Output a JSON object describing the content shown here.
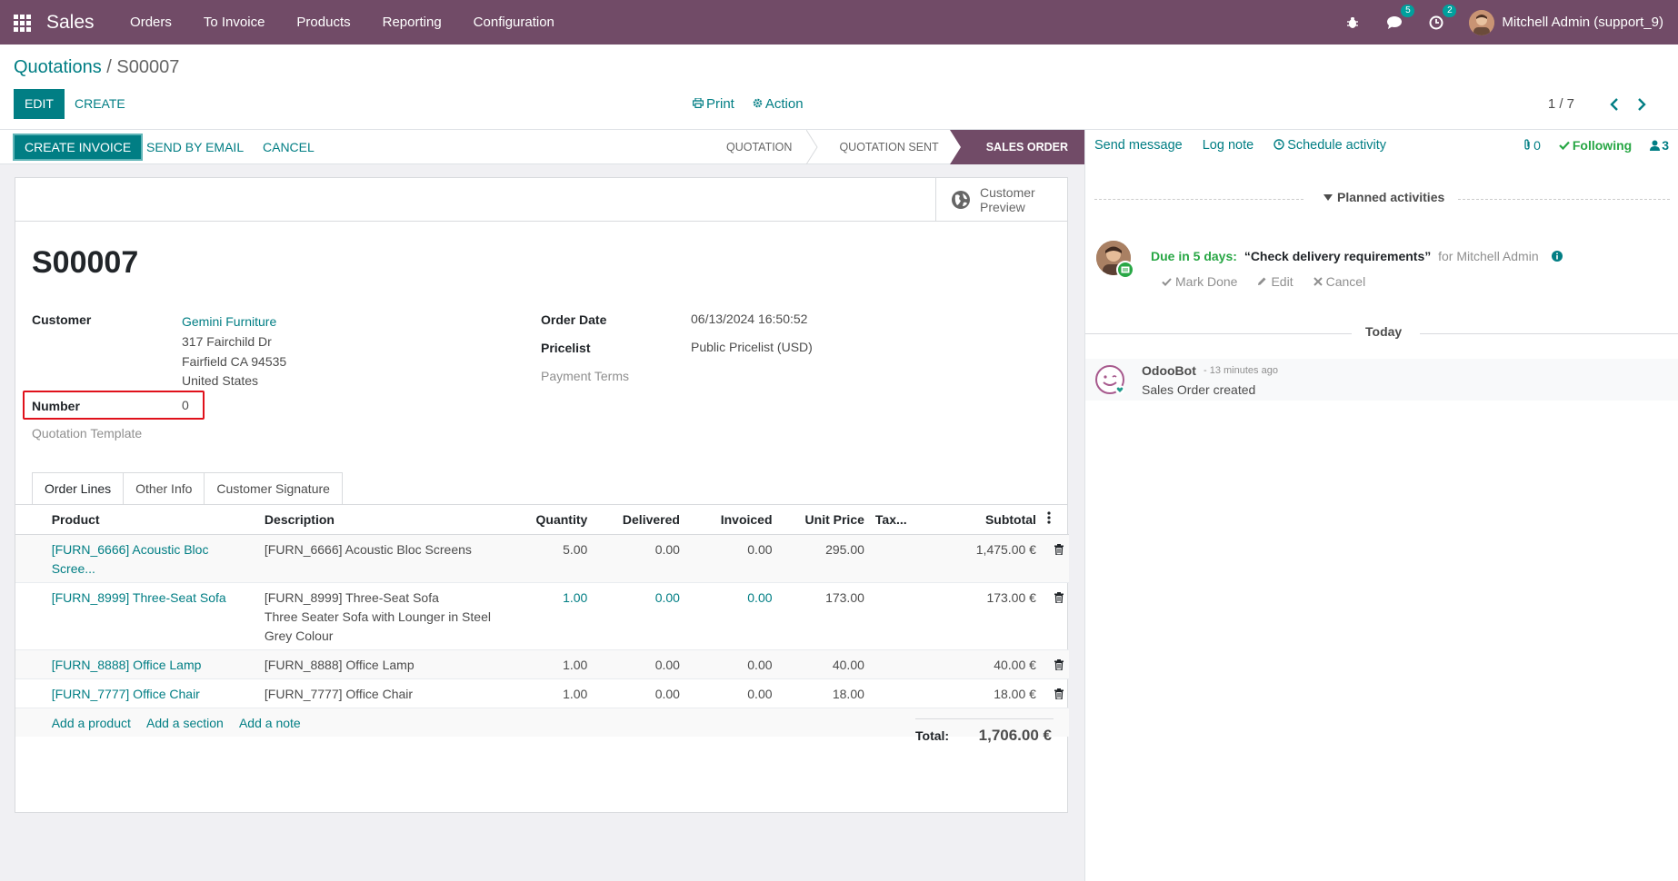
{
  "nav": {
    "app": "Sales",
    "menu": [
      "Orders",
      "To Invoice",
      "Products",
      "Reporting",
      "Configuration"
    ],
    "messages_count": "5",
    "activities_count": "2",
    "user": "Mitchell Admin (support_9)"
  },
  "breadcrumb": {
    "parent": "Quotations",
    "separator": "/",
    "current": "S00007"
  },
  "toolbar": {
    "edit": "EDIT",
    "create": "CREATE",
    "print": "Print",
    "action": "Action"
  },
  "pager": {
    "value": "1 / 7"
  },
  "statusbar": {
    "create_invoice": "CREATE INVOICE",
    "send_email": "SEND BY EMAIL",
    "cancel": "CANCEL",
    "stages": [
      "QUOTATION",
      "QUOTATION SENT",
      "SALES ORDER"
    ],
    "active_stage": "SALES ORDER"
  },
  "preview": {
    "label_1": "Customer",
    "label_2": "Preview"
  },
  "order": {
    "name": "S00007",
    "customer_label": "Customer",
    "customer_name": "Gemini Furniture",
    "address_1": "317 Fairchild Dr",
    "address_2": "Fairfield CA 94535",
    "address_3": "United States",
    "number_label": "Number",
    "number_value": "0",
    "template_label": "Quotation Template",
    "order_date_label": "Order Date",
    "order_date": "06/13/2024 16:50:52",
    "pricelist_label": "Pricelist",
    "pricelist": "Public Pricelist (USD)",
    "payment_terms_label": "Payment Terms"
  },
  "tabs": [
    "Order Lines",
    "Other Info",
    "Customer Signature"
  ],
  "table": {
    "headers": [
      "Product",
      "Description",
      "Quantity",
      "Delivered",
      "Invoiced",
      "Unit Price",
      "Tax...",
      "Subtotal"
    ],
    "rows": [
      {
        "product": "[FURN_6666] Acoustic Bloc Scree...",
        "desc1": "[FURN_6666] Acoustic Bloc Screens",
        "desc2": "",
        "desc3": "",
        "qty": "5.00",
        "delivered": "0.00",
        "invoiced": "0.00",
        "price": "295.00",
        "subtotal": "1,475.00 €"
      },
      {
        "product": "[FURN_8999] Three-Seat Sofa",
        "desc1": "[FURN_8999] Three-Seat Sofa",
        "desc2": "Three Seater Sofa with Lounger in Steel",
        "desc3": "Grey Colour",
        "qty": "1.00",
        "delivered": "0.00",
        "invoiced": "0.00",
        "price": "173.00",
        "subtotal": "173.00 €"
      },
      {
        "product": "[FURN_8888] Office Lamp",
        "desc1": "[FURN_8888] Office Lamp",
        "desc2": "",
        "desc3": "",
        "qty": "1.00",
        "delivered": "0.00",
        "invoiced": "0.00",
        "price": "40.00",
        "subtotal": "40.00 €"
      },
      {
        "product": "[FURN_7777] Office Chair",
        "desc1": "[FURN_7777] Office Chair",
        "desc2": "",
        "desc3": "",
        "qty": "1.00",
        "delivered": "0.00",
        "invoiced": "0.00",
        "price": "18.00",
        "subtotal": "18.00 €"
      }
    ],
    "add_product": "Add a product",
    "add_section": "Add a section",
    "add_note": "Add a note",
    "total_label": "Total:",
    "total_value": "1,706.00 €"
  },
  "chatter": {
    "send_message": "Send message",
    "log_note": "Log note",
    "schedule": "Schedule activity",
    "attachments": "0",
    "following": "Following",
    "followers": "3",
    "planned": "Planned activities",
    "due": "Due in 5 days:",
    "activity_title": "“Check delivery requirements”",
    "for_user": "for Mitchell Admin",
    "mark_done": "Mark Done",
    "edit": "Edit",
    "cancel": "Cancel",
    "today": "Today",
    "author": "OdooBot",
    "ago": "- 13 minutes ago",
    "body": "Sales Order created"
  },
  "colors": {
    "brand": "#714b67",
    "accent": "#017e84",
    "highlight": "#e0111b",
    "success": "#28a745"
  }
}
